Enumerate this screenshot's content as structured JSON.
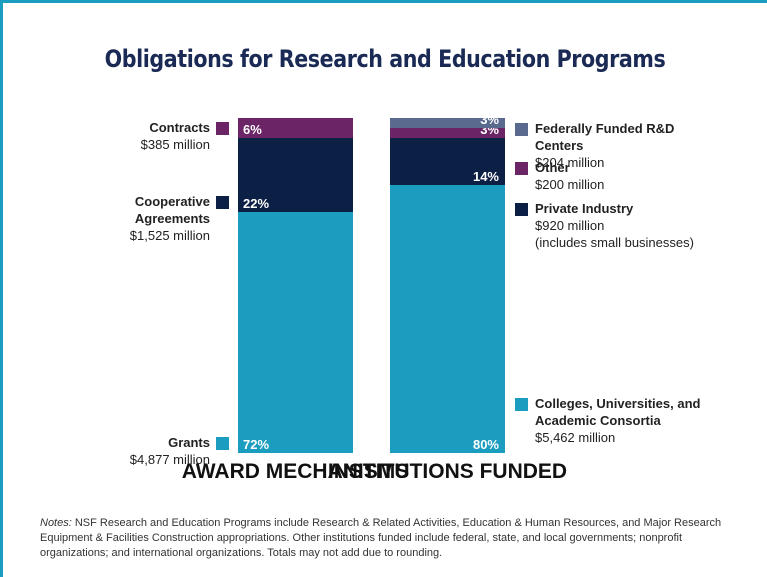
{
  "title": "Obligations for Research and Education Programs",
  "notes": {
    "label": "Notes:",
    "text": "NSF Research and Education Programs include Research & Related Activities, Education & Human Resources, and Major Research Equipment & Facilities Construction appropriations. Other institutions funded include federal, state, and local governments; nonprofit organizations; and international organizations. Totals may not add due to rounding."
  },
  "chart_data": [
    {
      "type": "stacked_bar",
      "xlabel": "AWARD MECHANISMS",
      "ylim": [
        0,
        100
      ],
      "series": [
        {
          "name": "Grants",
          "amount": "$4,877 million",
          "color": "#1b9dc0",
          "values": [
            72
          ],
          "value_labels": [
            "72%"
          ]
        },
        {
          "name": "Cooperative Agreements",
          "amount": "$1,525 million",
          "color": "#0c1f44",
          "values": [
            22
          ],
          "value_labels": [
            "22%"
          ]
        },
        {
          "name": "Contracts",
          "amount": "$385 million",
          "color": "#6b2466",
          "values": [
            6
          ],
          "value_labels": [
            "6%"
          ]
        }
      ]
    },
    {
      "type": "stacked_bar",
      "xlabel": "INSTITUTIONS FUNDED",
      "ylim": [
        0,
        100
      ],
      "series": [
        {
          "name": "Colleges, Universities, and Academic Consortia",
          "amount": "$5,462 million",
          "color": "#1b9dc0",
          "values": [
            80
          ],
          "value_labels": [
            "80%"
          ]
        },
        {
          "name": "Private Industry",
          "amount": "$920 million",
          "note": "(includes small businesses)",
          "color": "#0c1f44",
          "values": [
            14
          ],
          "value_labels": [
            "14%"
          ]
        },
        {
          "name": "Other",
          "amount": "$200 million",
          "color": "#6b2466",
          "values": [
            3
          ],
          "value_labels": [
            "3%"
          ]
        },
        {
          "name": "Federally Funded R&D Centers",
          "amount": "$204 million",
          "color": "#5a6a8f",
          "values": [
            3
          ],
          "value_labels": [
            "3%"
          ]
        }
      ]
    }
  ]
}
